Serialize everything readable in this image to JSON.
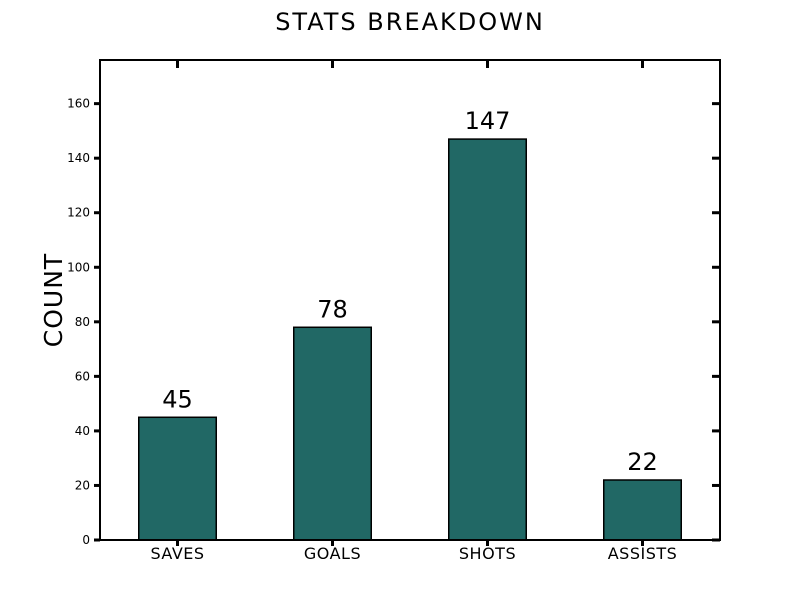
{
  "chart_data": {
    "type": "bar",
    "title": "STATS BREAKDOWN",
    "xlabel": "",
    "ylabel": "COUNT",
    "categories": [
      "SAVES",
      "GOALS",
      "SHOTS",
      "ASSISTS"
    ],
    "values": [
      45,
      78,
      147,
      22
    ],
    "data_labels": [
      "45",
      "78",
      "147",
      "22"
    ],
    "ylim": [
      0,
      176
    ],
    "yticks": [
      0,
      20,
      40,
      60,
      80,
      100,
      120,
      140,
      160
    ],
    "ytick_labels": [
      "0",
      "20",
      "40",
      "60",
      "80",
      "100",
      "120",
      "140",
      "160"
    ],
    "bar_color": "#216865",
    "grid": false,
    "legend": "none"
  }
}
